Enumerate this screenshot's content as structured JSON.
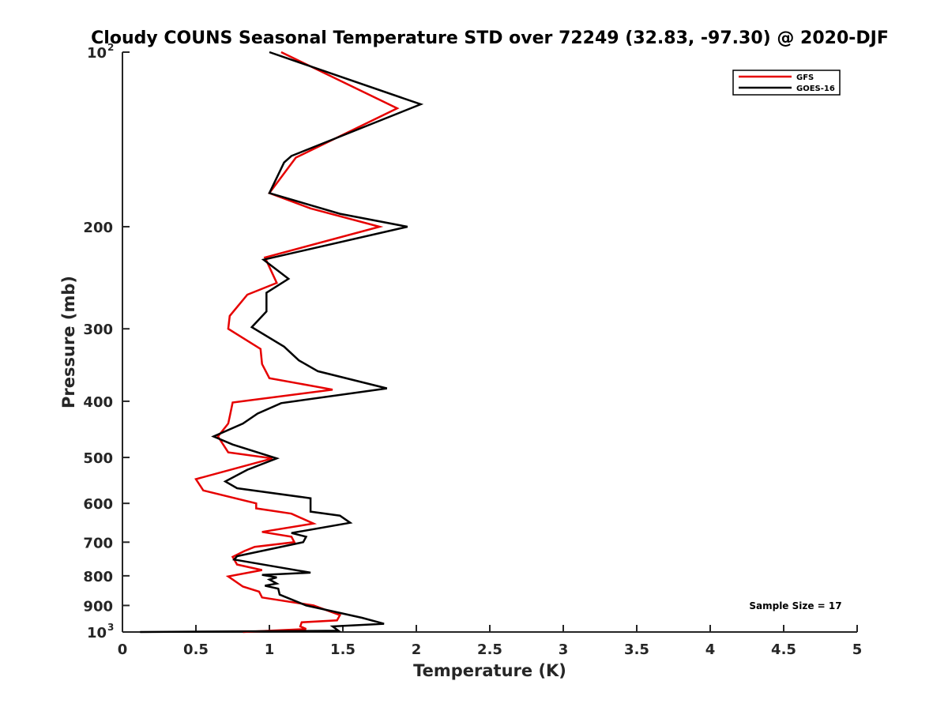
{
  "chart_data": {
    "type": "line",
    "title": "Cloudy COUNS Seasonal Temperature STD over 72249 (32.83, -97.30) @ 2020-DJF",
    "xlabel": "Temperature (K)",
    "ylabel": "Pressure (mb)",
    "xlim": [
      0,
      5
    ],
    "ylim": [
      100,
      1000
    ],
    "yscale": "log",
    "yreversed": true,
    "xticks": [
      "0",
      "0.5",
      "1",
      "1.5",
      "2",
      "2.5",
      "3",
      "3.5",
      "4",
      "4.5",
      "5"
    ],
    "xtick_values": [
      0,
      0.5,
      1,
      1.5,
      2,
      2.5,
      3,
      3.5,
      4,
      4.5,
      5
    ],
    "yticks": [
      {
        "value": 100,
        "base": "10",
        "exp": "2"
      },
      {
        "value": 200,
        "label": "200"
      },
      {
        "value": 300,
        "label": "300"
      },
      {
        "value": 400,
        "label": "400"
      },
      {
        "value": 500,
        "label": "500"
      },
      {
        "value": 600,
        "label": "600"
      },
      {
        "value": 700,
        "label": "700"
      },
      {
        "value": 800,
        "label": "800"
      },
      {
        "value": 900,
        "label": "900"
      },
      {
        "value": 1000,
        "base": "10",
        "exp": "3"
      }
    ],
    "legend_position": "top-right",
    "series": [
      {
        "name": "GFS",
        "color": "#e60000",
        "points": [
          [
            1.08,
            100
          ],
          [
            1.87,
            125
          ],
          [
            1.18,
            152
          ],
          [
            1.0,
            175
          ],
          [
            1.28,
            186
          ],
          [
            1.75,
            200
          ],
          [
            0.97,
            226
          ],
          [
            1.05,
            250
          ],
          [
            0.85,
            262
          ],
          [
            0.73,
            285
          ],
          [
            0.72,
            300
          ],
          [
            0.94,
            325
          ],
          [
            0.95,
            345
          ],
          [
            1.0,
            365
          ],
          [
            1.43,
            382
          ],
          [
            0.75,
            402
          ],
          [
            0.73,
            425
          ],
          [
            0.72,
            437
          ],
          [
            0.65,
            460
          ],
          [
            0.72,
            490
          ],
          [
            1.02,
            502
          ],
          [
            0.5,
            545
          ],
          [
            0.55,
            570
          ],
          [
            0.91,
            600
          ],
          [
            0.91,
            612
          ],
          [
            1.15,
            625
          ],
          [
            1.3,
            650
          ],
          [
            0.95,
            672
          ],
          [
            1.15,
            685
          ],
          [
            1.17,
            700
          ],
          [
            0.9,
            713
          ],
          [
            0.83,
            725
          ],
          [
            0.75,
            742
          ],
          [
            0.78,
            765
          ],
          [
            0.95,
            782
          ],
          [
            0.72,
            802
          ],
          [
            0.82,
            835
          ],
          [
            0.93,
            852
          ],
          [
            0.95,
            872
          ],
          [
            1.3,
            900
          ],
          [
            1.48,
            935
          ],
          [
            1.46,
            955
          ],
          [
            1.22,
            962
          ],
          [
            1.21,
            978
          ],
          [
            1.25,
            988
          ],
          [
            0.82,
            1000
          ]
        ]
      },
      {
        "name": "GOES-16",
        "color": "#000000",
        "points": [
          [
            1.0,
            100
          ],
          [
            2.03,
            123
          ],
          [
            1.15,
            151
          ],
          [
            1.1,
            155
          ],
          [
            1.0,
            175
          ],
          [
            1.48,
            190
          ],
          [
            1.94,
            200
          ],
          [
            0.96,
            228
          ],
          [
            1.13,
            246
          ],
          [
            0.98,
            260
          ],
          [
            0.98,
            280
          ],
          [
            0.88,
            298
          ],
          [
            1.1,
            322
          ],
          [
            1.2,
            340
          ],
          [
            1.33,
            355
          ],
          [
            1.8,
            380
          ],
          [
            1.08,
            403
          ],
          [
            0.92,
            420
          ],
          [
            0.82,
            437
          ],
          [
            0.62,
            460
          ],
          [
            0.75,
            475
          ],
          [
            1.05,
            502
          ],
          [
            0.85,
            525
          ],
          [
            0.7,
            550
          ],
          [
            0.78,
            565
          ],
          [
            1.28,
            588
          ],
          [
            1.28,
            620
          ],
          [
            1.48,
            630
          ],
          [
            1.55,
            648
          ],
          [
            1.15,
            675
          ],
          [
            1.25,
            685
          ],
          [
            1.23,
            700
          ],
          [
            0.78,
            740
          ],
          [
            0.76,
            750
          ],
          [
            1.28,
            790
          ],
          [
            0.95,
            797
          ],
          [
            1.05,
            805
          ],
          [
            1.0,
            812
          ],
          [
            1.05,
            825
          ],
          [
            0.97,
            832
          ],
          [
            1.06,
            842
          ],
          [
            1.07,
            862
          ],
          [
            1.25,
            900
          ],
          [
            1.63,
            945
          ],
          [
            1.78,
            968
          ],
          [
            1.43,
            978
          ],
          [
            1.47,
            995
          ],
          [
            0.12,
            1000
          ]
        ]
      }
    ],
    "annotation": "Sample Size = 17"
  }
}
